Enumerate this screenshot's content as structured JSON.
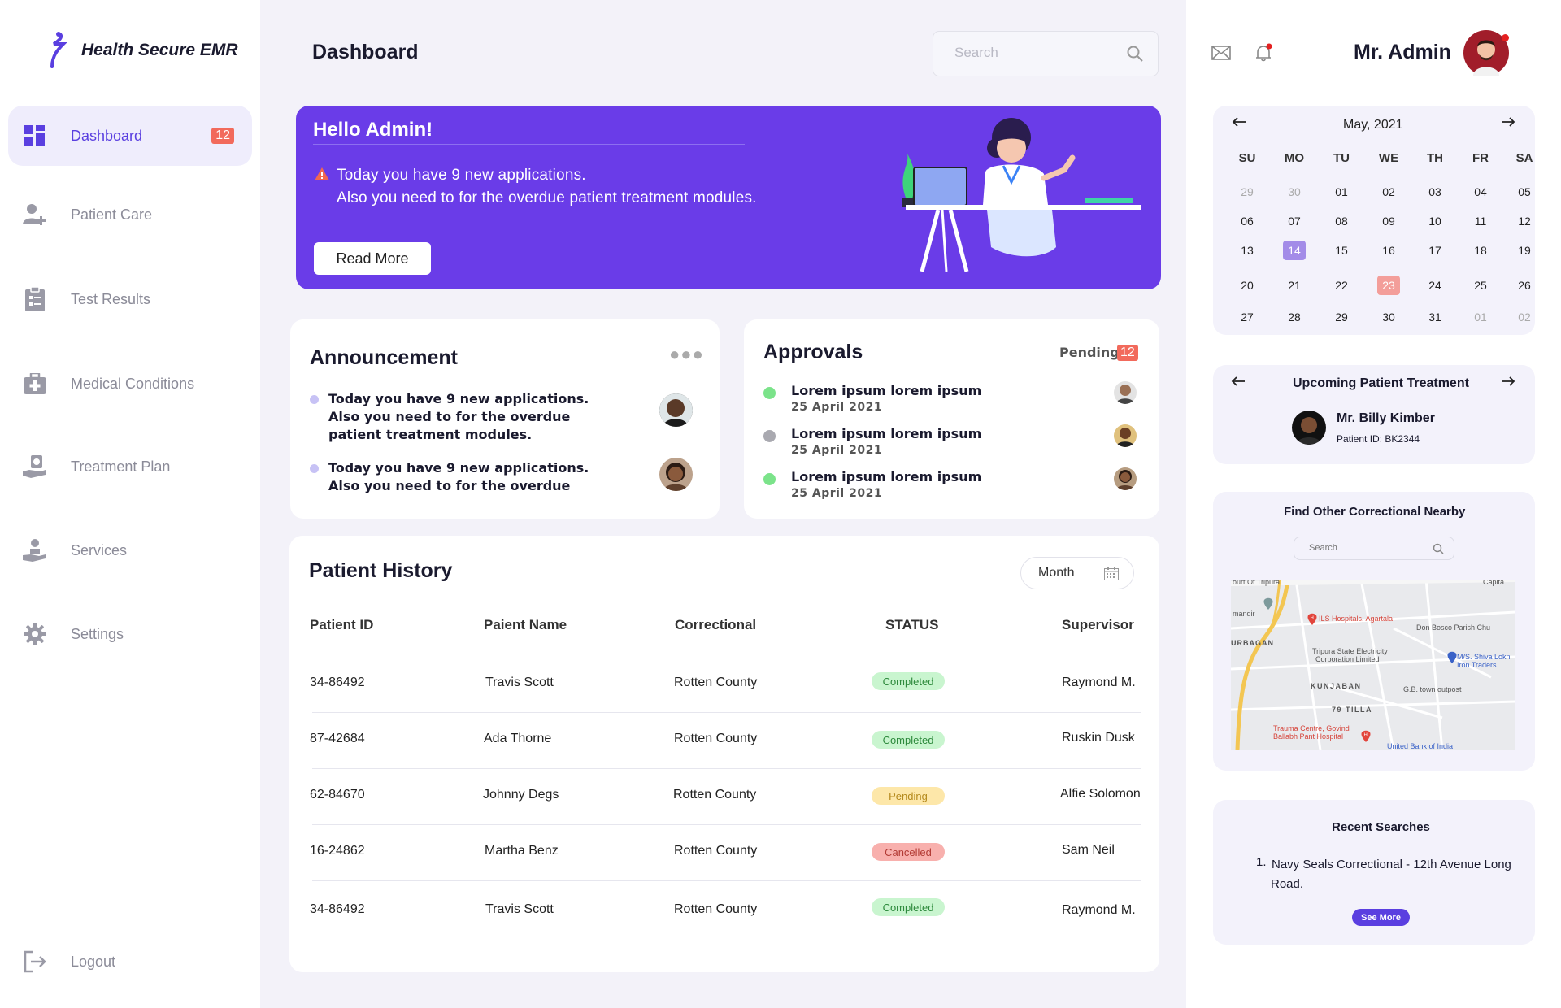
{
  "app": {
    "name": "Health Secure EMR"
  },
  "sidebar": {
    "items": [
      {
        "label": "Dashboard",
        "icon": "grid-icon",
        "badge": "12",
        "active": true
      },
      {
        "label": "Patient Care",
        "icon": "user-plus-icon"
      },
      {
        "label": "Test Results",
        "icon": "clipboard-icon"
      },
      {
        "label": "Medical Conditions",
        "icon": "medkit-icon"
      },
      {
        "label": "Treatment Plan",
        "icon": "hand-heart-icon"
      },
      {
        "label": "Services",
        "icon": "hand-service-icon"
      },
      {
        "label": "Settings",
        "icon": "gear-icon"
      }
    ],
    "logout": "Logout"
  },
  "header": {
    "title": "Dashboard",
    "search_placeholder": "Search",
    "user_name": "Mr. Admin"
  },
  "hero": {
    "title": "Hello Admin!",
    "line1": "Today you have 9 new applications.",
    "line2": "Also you need to for the overdue patient treatment modules.",
    "button": "Read More"
  },
  "announcement": {
    "title": "Announcement",
    "items": [
      {
        "text": "Today you have 9 new applications. Also you need to for the overdue patient treatment modules."
      },
      {
        "text": "Today you have 9 new applications. Also you need to for the overdue"
      }
    ]
  },
  "approvals": {
    "title": "Approvals",
    "pending_label": "Pending",
    "pending_count": "12",
    "items": [
      {
        "title": "Lorem ipsum lorem ipsum",
        "date": "25 April 2021",
        "status_color": "#7be38a"
      },
      {
        "title": "Lorem ipsum lorem ipsum",
        "date": "25 April 2021",
        "status_color": "#a9a9b0"
      },
      {
        "title": "Lorem ipsum lorem ipsum",
        "date": "25 April 2021",
        "status_color": "#7be38a"
      }
    ]
  },
  "patient_history": {
    "title": "Patient History",
    "filter": "Month",
    "columns": [
      "Patient ID",
      "Paient Name",
      "Correctional",
      "STATUS",
      "Supervisor"
    ],
    "rows": [
      {
        "id": "34-86492",
        "name": "Travis Scott",
        "correctional": "Rotten County",
        "status": "Completed",
        "supervisor": "Raymond M."
      },
      {
        "id": "87-42684",
        "name": "Ada Thorne",
        "correctional": "Rotten County",
        "status": "Completed",
        "supervisor": "Ruskin Dusk"
      },
      {
        "id": "62-84670",
        "name": "Johnny Degs",
        "correctional": "Rotten County",
        "status": "Pending",
        "supervisor": "Alfie Solomon"
      },
      {
        "id": "16-24862",
        "name": "Martha Benz",
        "correctional": "Rotten County",
        "status": "Cancelled",
        "supervisor": "Sam Neil"
      },
      {
        "id": "34-86492",
        "name": "Travis Scott",
        "correctional": "Rotten County",
        "status": "Completed",
        "supervisor": "Raymond M."
      }
    ]
  },
  "calendar": {
    "month": "May, 2021",
    "dows": [
      "SU",
      "MO",
      "TU",
      "WE",
      "TH",
      "FR",
      "SA"
    ],
    "weeks": [
      [
        "29",
        "30",
        "01",
        "02",
        "03",
        "04",
        "05"
      ],
      [
        "06",
        "07",
        "08",
        "09",
        "10",
        "11",
        "12"
      ],
      [
        "13",
        "14",
        "15",
        "16",
        "17",
        "18",
        "19"
      ],
      [
        "20",
        "21",
        "22",
        "23",
        "24",
        "25",
        "26"
      ],
      [
        "27",
        "28",
        "29",
        "30",
        "31",
        "01",
        "02"
      ]
    ],
    "selected_day": "14",
    "highlight_day": "23"
  },
  "upcoming": {
    "title": "Upcoming Patient Treatment",
    "patient_name": "Mr. Billy Kimber",
    "patient_id": "Patient ID: BK2344"
  },
  "nearby": {
    "title": "Find Other Correctional Nearby",
    "search_placeholder": "Search",
    "map_labels": {
      "ils": "ILS Hospitals, Agartala",
      "tripura": "Tripura State Electricity",
      "corp": "Corporation Limited",
      "kunjaban": "KUNJABAN",
      "tilla": "79 TILLA",
      "gb": "G.B. town outpost",
      "trauma1": "Trauma Centre, Govind",
      "trauma2": "Ballabh Pant Hospital",
      "ubi": "United Bank of India",
      "donbosco": "Don Bosco Parish Chu",
      "shiva1": "M/S. Shiva Lokn",
      "shiva2": "Iron Traders",
      "urban": "URBAGAN",
      "mandir": "mandir",
      "court": "ourt Of Tripura",
      "capital": "Capita"
    }
  },
  "recent": {
    "title": "Recent Searches",
    "item_num": "1.",
    "item": "Navy Seals Correctional - 12th Avenue Long Road.",
    "button": "See More"
  }
}
